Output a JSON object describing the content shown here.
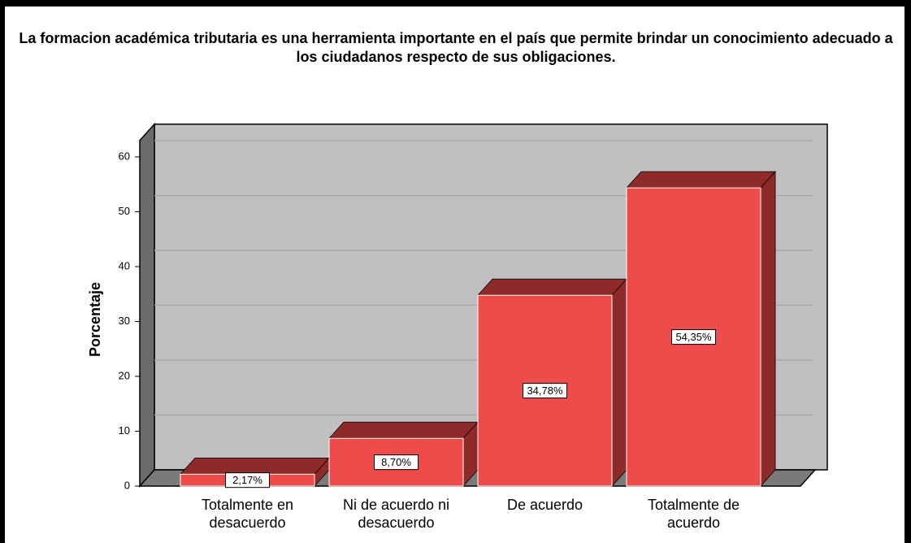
{
  "chart_data": {
    "type": "bar3d",
    "title": "La formacion académica tributaria es una herramienta importante en el país que permite brindar un conocimiento adecuado a los ciudadanos respecto de sus obligaciones.",
    "y_label": "Porcentaje",
    "categories": [
      "Totalmente en desacuerdo",
      "Ni de acuerdo ni desacuerdo",
      "De acuerdo",
      "Totalmente de acuerdo"
    ],
    "values": [
      2.17,
      8.7,
      34.78,
      54.35
    ],
    "value_labels": [
      "2,17%",
      "8,70%",
      "34,78%",
      "54,35%"
    ],
    "color": "#ee4b4b",
    "ylim": [
      0,
      63
    ],
    "yticks": [
      0,
      10,
      20,
      30,
      40,
      50,
      60
    ],
    "grid": true
  }
}
